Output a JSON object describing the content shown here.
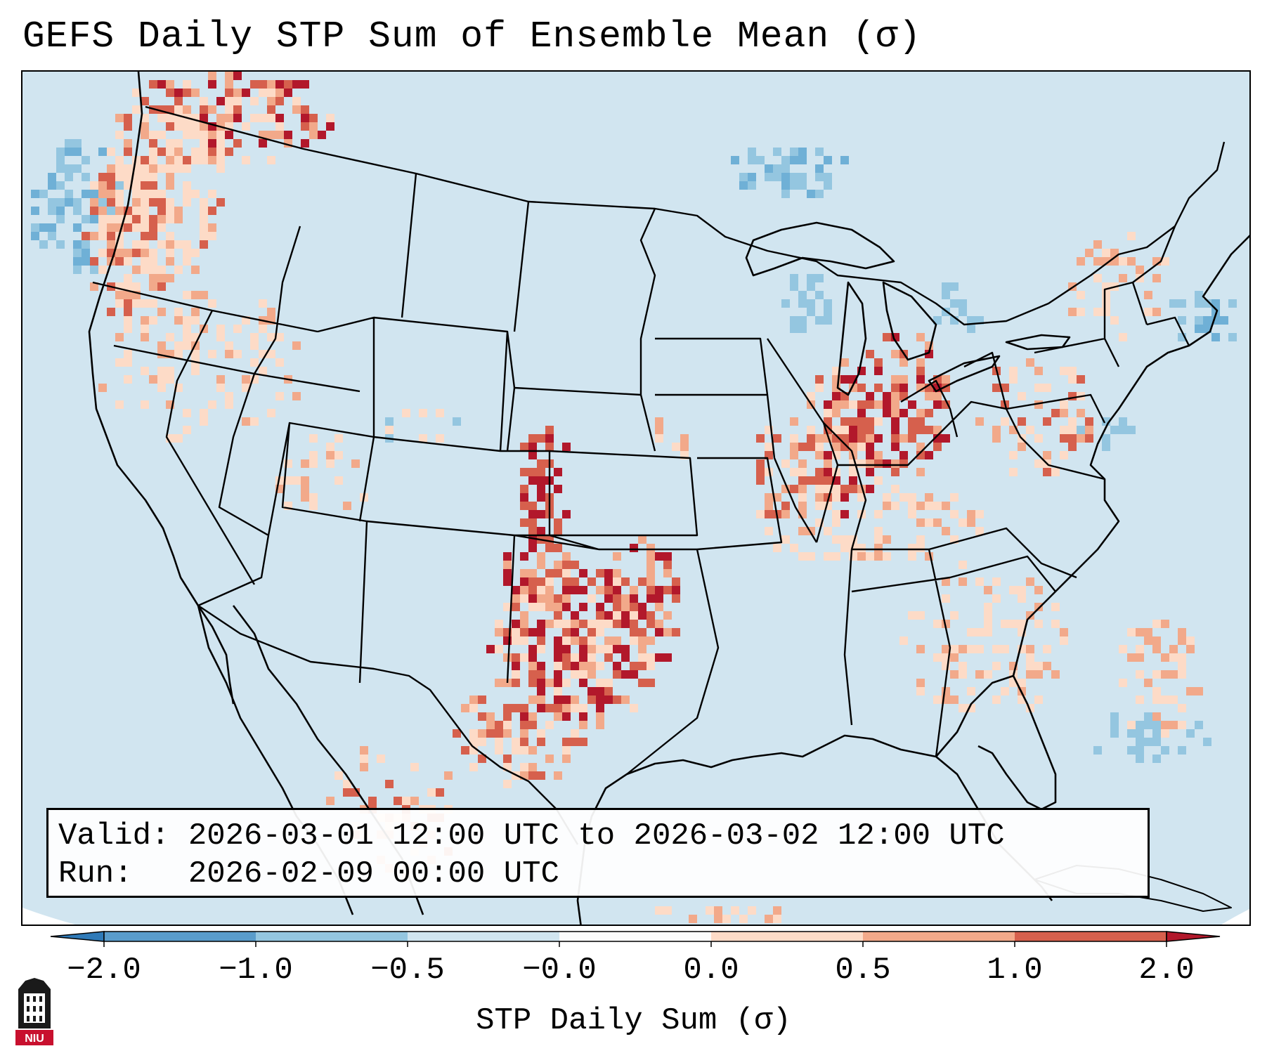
{
  "title": "GEFS Daily STP Sum of Ensemble Mean (σ)",
  "info": {
    "valid_label": "Valid:",
    "valid_text": "2026-03-01 12:00 UTC to 2026-03-02 12:00 UTC",
    "run_label": "Run:",
    "run_text": "2026-02-09 00:00 UTC"
  },
  "colorbar": {
    "label": "STP Daily Sum (σ)",
    "ticks": [
      "−2.0",
      "−1.0",
      "−0.5",
      "−0.0",
      "0.0",
      "0.5",
      "1.0",
      "2.0"
    ],
    "colors": [
      "#2f7ab8",
      "#5a9ccb",
      "#94c6e0",
      "#d1e5f0",
      "#fbfbfb",
      "#fddbc7",
      "#f2a98a",
      "#d6604d",
      "#b2182b"
    ],
    "extend": "both"
  },
  "palette": {
    "background": "#d1e5f0",
    "outside": "#ffffff",
    "lines": "#000000"
  },
  "regions": [
    {
      "name": "pacific-northwest",
      "level": 1,
      "shade": "light-red"
    },
    {
      "name": "northern-rockies",
      "level": 1,
      "shade": "light-red"
    },
    {
      "name": "southern-plains-texas",
      "level": 2,
      "shade": "dark-red"
    },
    {
      "name": "western-oklahoma-kansas",
      "level": 2,
      "shade": "dark-red"
    },
    {
      "name": "ohio-valley",
      "level": 2,
      "shade": "red"
    },
    {
      "name": "great-lakes",
      "level": 1,
      "shade": "light-red"
    },
    {
      "name": "mid-atlantic",
      "level": 1,
      "shade": "light-red"
    },
    {
      "name": "southeast",
      "level": 0.5,
      "shade": "pink"
    },
    {
      "name": "upper-midwest-lake-superior",
      "level": -1,
      "shade": "blue"
    },
    {
      "name": "northeast-atlantic",
      "level": -1,
      "shade": "blue"
    },
    {
      "name": "eastern-pacific",
      "level": -1,
      "shade": "blue"
    }
  ],
  "logo": {
    "text": "NIU"
  }
}
